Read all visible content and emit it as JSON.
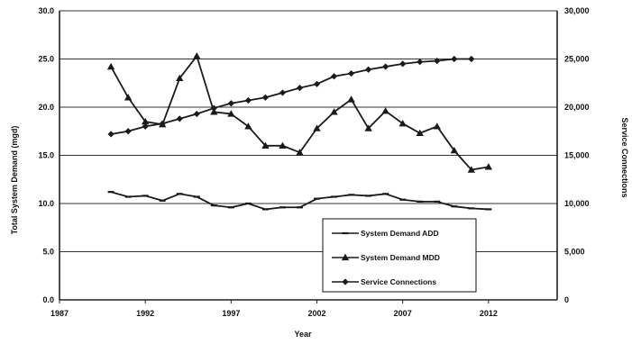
{
  "chart_data": {
    "type": "line",
    "xlabel": "Year",
    "ylabel_left": "Total System Demand (mgd)",
    "ylabel_right": "Service Connections",
    "xlim": [
      1987,
      2016
    ],
    "ylim_left": [
      0,
      30
    ],
    "ylim_right": [
      0,
      30000
    ],
    "x_ticks": [
      1987,
      1992,
      1997,
      2002,
      2007,
      2012
    ],
    "y_ticks_left": [
      "0.0",
      "5.0",
      "10.0",
      "15.0",
      "20.0",
      "25.0",
      "30.0"
    ],
    "y_ticks_right": [
      "0",
      "5,000",
      "10,000",
      "15,000",
      "20,000",
      "25,000",
      "30,000"
    ],
    "grid": true,
    "legend_position": "bottom-right",
    "series": [
      {
        "name": "System Demand ADD",
        "axis": "left",
        "marker": "dash",
        "color": "#1a1a1a",
        "x": [
          1990,
          1991,
          1992,
          1993,
          1994,
          1995,
          1996,
          1997,
          1998,
          1999,
          2000,
          2001,
          2002,
          2003,
          2004,
          2005,
          2006,
          2007,
          2008,
          2009,
          2010,
          2011,
          2012
        ],
        "y": [
          11.2,
          10.7,
          10.8,
          10.3,
          11.0,
          10.7,
          9.8,
          9.6,
          10.0,
          9.4,
          9.6,
          9.6,
          10.5,
          10.7,
          10.9,
          10.8,
          11.0,
          10.4,
          10.2,
          10.2,
          9.7,
          9.5,
          9.4
        ]
      },
      {
        "name": "System Demand MDD",
        "axis": "left",
        "marker": "triangle",
        "color": "#1a1a1a",
        "x": [
          1990,
          1991,
          1992,
          1993,
          1994,
          1995,
          1996,
          1997,
          1998,
          1999,
          2000,
          2001,
          2002,
          2003,
          2004,
          2005,
          2006,
          2007,
          2008,
          2009,
          2010,
          2011,
          2012
        ],
        "y": [
          24.2,
          21.0,
          18.5,
          18.2,
          23.0,
          25.3,
          19.5,
          19.3,
          18.0,
          16.0,
          16.0,
          15.3,
          17.8,
          19.5,
          20.8,
          17.8,
          19.6,
          18.3,
          17.3,
          18.0,
          15.5,
          13.5,
          13.8
        ]
      },
      {
        "name": "Service Connections",
        "axis": "right",
        "marker": "diamond",
        "color": "#1a1a1a",
        "x": [
          1990,
          1991,
          1992,
          1993,
          1994,
          1995,
          1996,
          1997,
          1998,
          1999,
          2000,
          2001,
          2002,
          2003,
          2004,
          2005,
          2006,
          2007,
          2008,
          2009,
          2010,
          2011
        ],
        "y": [
          17200,
          17500,
          18000,
          18300,
          18800,
          19300,
          19900,
          20400,
          20700,
          21000,
          21500,
          22000,
          22400,
          23200,
          23500,
          23900,
          24200,
          24500,
          24700,
          24800,
          25000,
          25000
        ]
      }
    ]
  }
}
